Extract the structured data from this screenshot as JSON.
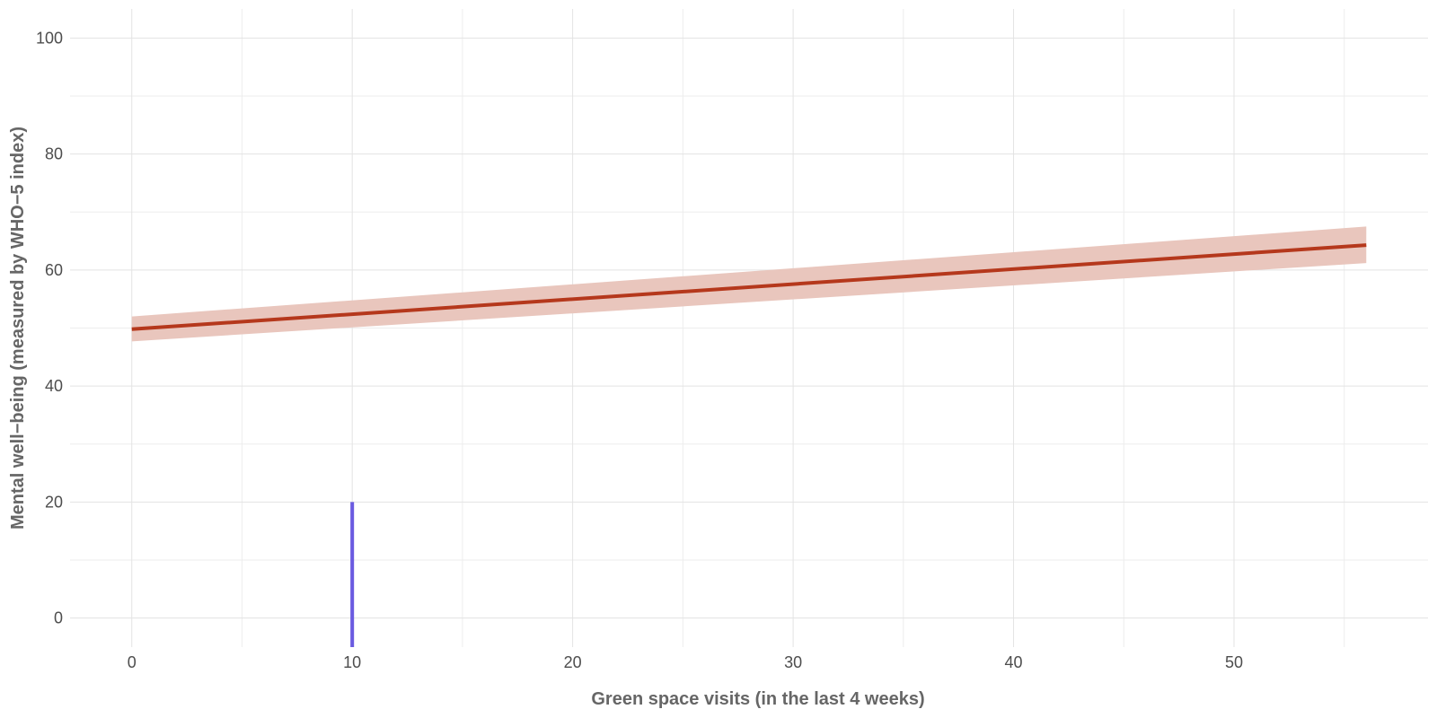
{
  "chart_data": {
    "type": "line",
    "xlabel": "Green space visits (in the last 4 weeks)",
    "ylabel": "Mental well−being (measured by WHO−5 index)",
    "xlim": [
      -2.8,
      58.8
    ],
    "ylim": [
      -5,
      105
    ],
    "x_ticks": [
      0,
      10,
      20,
      30,
      40,
      50
    ],
    "x_tick_labels": [
      "0",
      "10",
      "20",
      "30",
      "40",
      "50"
    ],
    "y_ticks": [
      0,
      20,
      40,
      60,
      80,
      100
    ],
    "y_tick_labels": [
      "0",
      "20",
      "40",
      "60",
      "80",
      "100"
    ],
    "highlight_tick": 10,
    "grid": true,
    "series": [
      {
        "x": [
          0,
          56
        ],
        "y": [
          49.8,
          64.3
        ],
        "ci_lower": [
          47.7,
          61.2
        ],
        "ci_upper": [
          52.0,
          67.5
        ]
      }
    ],
    "markers": [
      {
        "x": 10,
        "y_from": -5,
        "y_to": 20
      }
    ],
    "colors": {
      "line": "#b5381c",
      "band": "#e9c6bd",
      "marker": "#6a5ae0",
      "highlight_tick": "#6a5ae0",
      "grid": "#e3e3e3"
    }
  }
}
